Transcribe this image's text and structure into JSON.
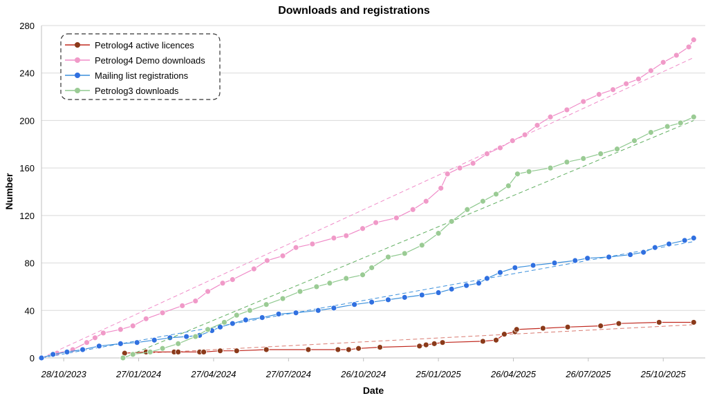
{
  "chart_data": {
    "type": "scatter",
    "title": "Downloads and registrations",
    "xlabel": "Date",
    "ylabel": "Number",
    "ylim": [
      0,
      280
    ],
    "yticks": [
      0,
      40,
      80,
      120,
      160,
      200,
      240,
      280
    ],
    "xlim": [
      "2023-10-01",
      "2025-12-15"
    ],
    "xticks": [
      {
        "date": "2023-10-28",
        "label": "28/10/2023"
      },
      {
        "date": "2024-01-27",
        "label": "27/01/2024"
      },
      {
        "date": "2024-04-27",
        "label": "27/04/2024"
      },
      {
        "date": "2024-07-27",
        "label": "27/07/2024"
      },
      {
        "date": "2024-10-26",
        "label": "26/10/2024"
      },
      {
        "date": "2025-01-25",
        "label": "25/01/2025"
      },
      {
        "date": "2025-04-26",
        "label": "26/04/2025"
      },
      {
        "date": "2025-07-26",
        "label": "26/07/2025"
      },
      {
        "date": "2025-10-25",
        "label": "25/10/2025"
      }
    ],
    "grid": "horizontal",
    "legend_position": "top-left",
    "series": [
      {
        "name": "Petrolog4 active licences",
        "color": "#c0281e",
        "marker_color": "#8b3a1a",
        "trend_color": "#d97a70",
        "points": [
          [
            "2024-01-08",
            0
          ],
          [
            "2024-01-10",
            4
          ],
          [
            "2024-02-05",
            5
          ],
          [
            "2024-03-10",
            5
          ],
          [
            "2024-03-15",
            5
          ],
          [
            "2024-04-10",
            5
          ],
          [
            "2024-04-15",
            5
          ],
          [
            "2024-05-05",
            6
          ],
          [
            "2024-05-25",
            6
          ],
          [
            "2024-06-30",
            7
          ],
          [
            "2024-08-20",
            7
          ],
          [
            "2024-09-25",
            7
          ],
          [
            "2024-10-08",
            7
          ],
          [
            "2024-10-20",
            8
          ],
          [
            "2024-11-15",
            9
          ],
          [
            "2025-01-02",
            10
          ],
          [
            "2025-01-10",
            11
          ],
          [
            "2025-01-20",
            12
          ],
          [
            "2025-01-30",
            13
          ],
          [
            "2025-03-20",
            14
          ],
          [
            "2025-04-05",
            15
          ],
          [
            "2025-04-15",
            20
          ],
          [
            "2025-04-28",
            22
          ],
          [
            "2025-04-30",
            24
          ],
          [
            "2025-06-01",
            25
          ],
          [
            "2025-07-01",
            26
          ],
          [
            "2025-08-10",
            27
          ],
          [
            "2025-09-01",
            29
          ],
          [
            "2025-10-20",
            30
          ],
          [
            "2025-12-01",
            30
          ]
        ],
        "trend": [
          [
            "2024-01-08",
            3
          ],
          [
            "2025-12-01",
            28
          ]
        ]
      },
      {
        "name": "Petrolog4 Demo downloads",
        "color": "#f08bc8",
        "marker_color": "#f09ac8",
        "trend_color": "#f08bc8",
        "points": [
          [
            "2023-10-01",
            0
          ],
          [
            "2023-10-20",
            4
          ],
          [
            "2023-11-08",
            7
          ],
          [
            "2023-11-25",
            13
          ],
          [
            "2023-12-05",
            17
          ],
          [
            "2023-12-15",
            21
          ],
          [
            "2024-01-05",
            24
          ],
          [
            "2024-01-20",
            27
          ],
          [
            "2024-02-05",
            33
          ],
          [
            "2024-02-25",
            38
          ],
          [
            "2024-03-20",
            44
          ],
          [
            "2024-04-05",
            48
          ],
          [
            "2024-04-20",
            56
          ],
          [
            "2024-05-08",
            63
          ],
          [
            "2024-05-20",
            66
          ],
          [
            "2024-06-15",
            75
          ],
          [
            "2024-07-01",
            82
          ],
          [
            "2024-07-20",
            86
          ],
          [
            "2024-08-05",
            93
          ],
          [
            "2024-08-25",
            96
          ],
          [
            "2024-09-20",
            101
          ],
          [
            "2024-10-05",
            103
          ],
          [
            "2024-10-25",
            109
          ],
          [
            "2024-11-10",
            114
          ],
          [
            "2024-12-05",
            118
          ],
          [
            "2024-12-25",
            125
          ],
          [
            "2025-01-10",
            132
          ],
          [
            "2025-01-28",
            143
          ],
          [
            "2025-02-05",
            155
          ],
          [
            "2025-02-20",
            160
          ],
          [
            "2025-03-08",
            164
          ],
          [
            "2025-03-25",
            172
          ],
          [
            "2025-04-10",
            177
          ],
          [
            "2025-04-25",
            183
          ],
          [
            "2025-05-10",
            188
          ],
          [
            "2025-05-25",
            196
          ],
          [
            "2025-06-10",
            203
          ],
          [
            "2025-06-30",
            209
          ],
          [
            "2025-07-20",
            216
          ],
          [
            "2025-08-08",
            222
          ],
          [
            "2025-08-25",
            226
          ],
          [
            "2025-09-10",
            231
          ],
          [
            "2025-09-25",
            235
          ],
          [
            "2025-10-10",
            242
          ],
          [
            "2025-10-25",
            249
          ],
          [
            "2025-11-10",
            255
          ],
          [
            "2025-11-25",
            262
          ],
          [
            "2025-12-01",
            268
          ]
        ],
        "trend": [
          [
            "2023-10-01",
            0
          ],
          [
            "2025-12-01",
            253
          ]
        ]
      },
      {
        "name": "Mailing list registrations",
        "color": "#3a8fdc",
        "marker_color": "#3070e0",
        "trend_color": "#3a8fdc",
        "points": [
          [
            "2023-10-01",
            0
          ],
          [
            "2023-10-15",
            3
          ],
          [
            "2023-11-01",
            5
          ],
          [
            "2023-11-20",
            7
          ],
          [
            "2023-12-10",
            10
          ],
          [
            "2024-01-05",
            12
          ],
          [
            "2024-01-25",
            13
          ],
          [
            "2024-02-15",
            15
          ],
          [
            "2024-03-05",
            17
          ],
          [
            "2024-03-25",
            18
          ],
          [
            "2024-04-10",
            19
          ],
          [
            "2024-04-25",
            23
          ],
          [
            "2024-05-05",
            26
          ],
          [
            "2024-05-20",
            29
          ],
          [
            "2024-06-05",
            32
          ],
          [
            "2024-06-25",
            34
          ],
          [
            "2024-07-15",
            37
          ],
          [
            "2024-08-05",
            38
          ],
          [
            "2024-09-01",
            40
          ],
          [
            "2024-09-20",
            42
          ],
          [
            "2024-10-15",
            45
          ],
          [
            "2024-11-05",
            47
          ],
          [
            "2024-11-25",
            49
          ],
          [
            "2024-12-15",
            51
          ],
          [
            "2025-01-05",
            53
          ],
          [
            "2025-01-25",
            55
          ],
          [
            "2025-02-10",
            58
          ],
          [
            "2025-02-28",
            61
          ],
          [
            "2025-03-15",
            63
          ],
          [
            "2025-03-25",
            67
          ],
          [
            "2025-04-10",
            72
          ],
          [
            "2025-04-28",
            76
          ],
          [
            "2025-05-20",
            78
          ],
          [
            "2025-06-15",
            80
          ],
          [
            "2025-07-10",
            82
          ],
          [
            "2025-07-25",
            84
          ],
          [
            "2025-08-20",
            85
          ],
          [
            "2025-09-15",
            87
          ],
          [
            "2025-10-01",
            89
          ],
          [
            "2025-10-15",
            93
          ],
          [
            "2025-11-01",
            96
          ],
          [
            "2025-11-20",
            99
          ],
          [
            "2025-12-01",
            101
          ]
        ],
        "trend": [
          [
            "2023-10-01",
            0
          ],
          [
            "2025-12-01",
            98
          ]
        ]
      },
      {
        "name": "Petrolog3 downloads",
        "color": "#8fc98f",
        "marker_color": "#9acb94",
        "trend_color": "#5fae5f",
        "points": [
          [
            "2024-01-08",
            0
          ],
          [
            "2024-01-20",
            3
          ],
          [
            "2024-02-10",
            5
          ],
          [
            "2024-02-25",
            8
          ],
          [
            "2024-03-15",
            12
          ],
          [
            "2024-04-05",
            18
          ],
          [
            "2024-04-20",
            24
          ],
          [
            "2024-05-10",
            30
          ],
          [
            "2024-05-25",
            36
          ],
          [
            "2024-06-10",
            40
          ],
          [
            "2024-06-30",
            45
          ],
          [
            "2024-07-20",
            50
          ],
          [
            "2024-08-10",
            56
          ],
          [
            "2024-08-30",
            60
          ],
          [
            "2024-09-15",
            63
          ],
          [
            "2024-10-05",
            67
          ],
          [
            "2024-10-25",
            70
          ],
          [
            "2024-11-05",
            76
          ],
          [
            "2024-11-25",
            85
          ],
          [
            "2024-12-15",
            88
          ],
          [
            "2025-01-05",
            95
          ],
          [
            "2025-01-25",
            105
          ],
          [
            "2025-02-10",
            115
          ],
          [
            "2025-03-01",
            125
          ],
          [
            "2025-03-20",
            132
          ],
          [
            "2025-04-05",
            138
          ],
          [
            "2025-04-20",
            145
          ],
          [
            "2025-05-01",
            155
          ],
          [
            "2025-05-15",
            157
          ],
          [
            "2025-06-10",
            160
          ],
          [
            "2025-06-30",
            165
          ],
          [
            "2025-07-20",
            168
          ],
          [
            "2025-08-10",
            172
          ],
          [
            "2025-08-30",
            176
          ],
          [
            "2025-09-20",
            183
          ],
          [
            "2025-10-10",
            190
          ],
          [
            "2025-10-30",
            195
          ],
          [
            "2025-11-15",
            198
          ],
          [
            "2025-12-01",
            203
          ]
        ],
        "trend": [
          [
            "2024-01-08",
            0
          ],
          [
            "2025-12-01",
            200
          ]
        ]
      }
    ]
  }
}
